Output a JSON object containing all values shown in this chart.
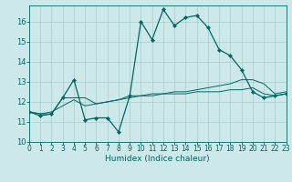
{
  "xlabel": "Humidex (Indice chaleur)",
  "background_color": "#cce8e8",
  "grid_color": "#aacccc",
  "line_color": "#006666",
  "x_values": [
    0,
    1,
    2,
    3,
    4,
    5,
    6,
    7,
    8,
    9,
    10,
    11,
    12,
    13,
    14,
    15,
    16,
    17,
    18,
    19,
    20,
    21,
    22,
    23
  ],
  "series1": [
    11.5,
    11.3,
    11.4,
    12.2,
    13.1,
    11.1,
    11.2,
    11.2,
    10.5,
    12.3,
    16.0,
    15.1,
    16.6,
    15.8,
    16.2,
    16.3,
    15.7,
    14.6,
    14.3,
    13.6,
    12.5,
    12.2,
    12.3,
    12.4
  ],
  "series2": [
    11.5,
    11.4,
    11.4,
    12.2,
    12.2,
    12.2,
    11.9,
    12.0,
    12.1,
    12.3,
    12.3,
    12.3,
    12.4,
    12.4,
    12.4,
    12.5,
    12.5,
    12.5,
    12.6,
    12.6,
    12.7,
    12.4,
    12.3,
    12.4
  ],
  "series3": [
    11.5,
    11.4,
    11.5,
    11.8,
    12.1,
    11.8,
    11.9,
    12.0,
    12.1,
    12.2,
    12.3,
    12.4,
    12.4,
    12.5,
    12.5,
    12.6,
    12.7,
    12.8,
    12.9,
    13.1,
    13.1,
    12.9,
    12.4,
    12.5
  ],
  "xlim": [
    0,
    23
  ],
  "ylim": [
    10,
    16.8
  ],
  "yticks": [
    10,
    11,
    12,
    13,
    14,
    15,
    16
  ],
  "xticks": [
    0,
    1,
    2,
    3,
    4,
    5,
    6,
    7,
    8,
    9,
    10,
    11,
    12,
    13,
    14,
    15,
    16,
    17,
    18,
    19,
    20,
    21,
    22,
    23
  ],
  "tick_fontsize": 5.5,
  "xlabel_fontsize": 6.5,
  "marker_size": 2.2,
  "line_width": 0.9
}
